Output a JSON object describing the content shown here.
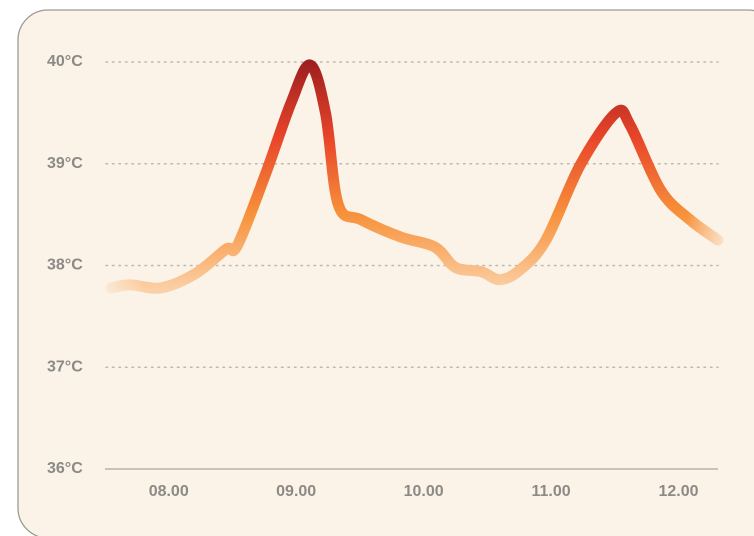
{
  "chart_data": {
    "type": "line",
    "x": [
      7.55,
      7.7,
      7.94,
      8.21,
      8.45,
      8.54,
      8.76,
      8.96,
      9.11,
      9.23,
      9.33,
      9.51,
      9.82,
      10.09,
      10.25,
      10.45,
      10.6,
      10.76,
      10.96,
      11.23,
      11.51,
      11.62,
      11.86,
      12.09,
      12.31
    ],
    "values": [
      37.78,
      37.81,
      37.78,
      37.92,
      38.16,
      38.2,
      38.9,
      39.6,
      39.97,
      39.5,
      38.6,
      38.45,
      38.28,
      38.18,
      37.98,
      37.94,
      37.86,
      37.96,
      38.25,
      38.99,
      39.5,
      39.38,
      38.74,
      38.45,
      38.25
    ],
    "xlim": [
      7.5,
      12.31
    ],
    "xticks": [
      {
        "value": 8,
        "label": "08.00"
      },
      {
        "value": 9,
        "label": "09.00"
      },
      {
        "value": 10,
        "label": "10.00"
      },
      {
        "value": 11,
        "label": "11.00"
      },
      {
        "value": 12,
        "label": "12.00"
      }
    ],
    "ylim": [
      36,
      40
    ],
    "yticks": [
      {
        "value": 36,
        "label": "36°C"
      },
      {
        "value": 37,
        "label": "37°C"
      },
      {
        "value": 38,
        "label": "38°C"
      },
      {
        "value": 39,
        "label": "39°C"
      },
      {
        "value": 40,
        "label": "40°C"
      }
    ],
    "grid": true,
    "colors": [
      "#fbd0a6",
      "#f7913a",
      "#e8452a",
      "#9e1f1f"
    ]
  }
}
